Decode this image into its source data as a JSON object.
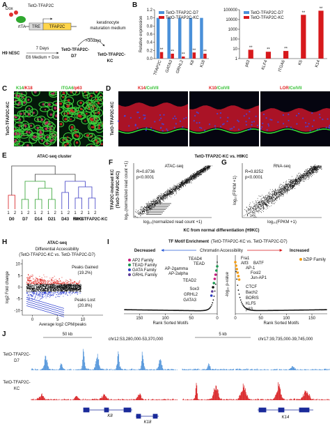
{
  "panel_letters": [
    "A",
    "B",
    "C",
    "D",
    "E",
    "F",
    "G",
    "H",
    "I",
    "J"
  ],
  "chart_data": [
    {
      "type": "bar",
      "ylabel": "Relative expression",
      "categories": [
        "TFAP2C",
        "GATA3",
        "GRHL2",
        "K8",
        "K18"
      ],
      "series": [
        {
          "name": "TetO-TFAP2C-D7",
          "color": "#4a90d9",
          "values": [
            1,
            1,
            1,
            1,
            1
          ]
        },
        {
          "name": "TetO-TFAP2C-KC",
          "color": "#d7191c",
          "values": [
            0.16,
            0.12,
            0.05,
            0.15,
            0.12
          ],
          "significance": [
            "**",
            "**",
            "**",
            "**",
            "**"
          ]
        }
      ],
      "ylim": [
        0,
        1.2
      ],
      "yticks": [
        {
          "value": 0,
          "label": "0.0"
        },
        0.2,
        0.4,
        0.6,
        0.8,
        {
          "value": 1,
          "label": "1.0"
        },
        1.2
      ],
      "legend": "top"
    },
    {
      "type": "bar",
      "log": true,
      "categories": [
        "p63",
        "KLF4",
        "ITGA6",
        "K5",
        "K14"
      ],
      "series": [
        {
          "name": "TetO-TFAP2C-D7",
          "color": "#4a90d9",
          "values": [
            1,
            1,
            1,
            1,
            1
          ]
        },
        {
          "name": "TetO-TFAP2C-KC",
          "color": "#d7191c",
          "values": [
            8,
            5,
            6,
            30000,
            80000
          ],
          "significance": [
            "**",
            "**",
            "**",
            "**",
            "**"
          ]
        }
      ],
      "ylim": [
        1,
        100000
      ],
      "yticks": [
        1,
        10,
        100,
        1000,
        10000,
        100000
      ],
      "legend": "top"
    }
  ],
  "panels": {
    "A": {
      "construct": "TetO-TFAP2C",
      "dox": "Dox",
      "rtta": "rtTA",
      "tre": "TRE",
      "gene": "TFAP2C",
      "start": "H9 hESC",
      "days": "7 Days",
      "medium1": "E6 Medium + Dox",
      "d7": [
        "TetO-TFAP2C-",
        "D7"
      ],
      "medium2": [
        "keratinocyte",
        "maturation medium"
      ],
      "time2": ">30days",
      "kc": [
        "TetO-TFAP2C-",
        "KC"
      ]
    },
    "C": {
      "side_label": "TetO-TFAP2C-KC",
      "stains": [
        [
          {
            "text": "K14",
            "color": "#2fbf2f"
          },
          {
            "text": "/K18",
            "color": "#e02020"
          }
        ],
        [
          {
            "text": "ITGA6",
            "color": "#2fbf2f"
          },
          {
            "text": "/p63",
            "color": "#e02020"
          }
        ]
      ]
    },
    "D": {
      "side_label": "TetO-TFAP2C-KC",
      "stains": [
        [
          {
            "text": "K14",
            "color": "#e02020"
          },
          {
            "text": "/ColVII",
            "color": "#2fbf2f"
          }
        ],
        [
          {
            "text": "K10",
            "color": "#e02020"
          },
          {
            "text": "/ColVII",
            "color": "#2fbf2f"
          }
        ],
        [
          {
            "text": "LOR",
            "color": "#e02020"
          },
          {
            "text": "/ColVII",
            "color": "#2fbf2f"
          }
        ]
      ]
    },
    "E": {
      "title": "ATAC-seq cluster",
      "groups": [
        {
          "name": "D0",
          "color": "#d7191c",
          "replicates": [
            "1",
            "2"
          ]
        },
        {
          "name": "D7",
          "color": "#2ca02c",
          "replicates": [
            "1",
            "2"
          ]
        },
        {
          "name": "D14",
          "color": "#2ca02c",
          "replicates": [
            "1",
            "2"
          ]
        },
        {
          "name": "D21",
          "color": "#2ca02c",
          "replicates": [
            "1",
            "2"
          ]
        },
        {
          "name": "D43",
          "color": "#3b3bc4",
          "replicates": [
            "1",
            "2"
          ]
        },
        {
          "name": "H9KC",
          "color": "#3b3bc4",
          "replicates": [
            "1",
            "2"
          ]
        },
        {
          "name": "TetO-TFAP2C-KC",
          "color": "#3b3bc4",
          "replicates": [
            "1",
            "2"
          ]
        }
      ]
    },
    "F": {
      "heading": "TetO-TFAP2C-KC vs. H9KC",
      "title": "ATAC-seq",
      "r": "R=0.8736",
      "p": "p<0.0001",
      "ylabel": [
        "TFAP2C-induced KC",
        "(TetO-TFAP2C-KC)"
      ],
      "axis_label": "log₁₀(normalized read count +1)",
      "xlabel": "KC from normal differentiation (H9KC)"
    },
    "G": {
      "title": "RNA-seq",
      "r": "R=0.8252",
      "p": "p<0.0001",
      "axis_label": "log₁₀(FPKM +1)"
    },
    "H": {
      "title": "ATAC-seq",
      "subtitle": "Differential Accessibility",
      "comparison": "(TetO-TFAP2C-KC vs. TetO-TFAP2C-D7)",
      "gained": [
        "Peaks Gained",
        "(19.2%)"
      ],
      "lost": [
        "Peaks Lost",
        "(20.8%)"
      ],
      "ylabel": "log2 Fold change",
      "xlabel": "Average log2 CPM/peaks",
      "ylim": [
        -12,
        12
      ],
      "yticks": [
        -10,
        -5,
        0,
        5,
        10
      ],
      "xlim": [
        -2,
        14
      ],
      "xticks": [
        0,
        5,
        10
      ]
    },
    "I": {
      "title": "TF Motif Enrichment",
      "comparison": "(TetO-TFAP2C-KC vs. TetO-TFAP2C-D7)",
      "decreased": "Decreased",
      "middle": "Chromatin Accessibility",
      "increased": "Increased",
      "ylabel": "-log₁₀ p-value",
      "xlabel": "Rank Sorted Motifs",
      "families": [
        {
          "name": "AP2 Family",
          "color": "#c51b7d"
        },
        {
          "name": "TEAD Family",
          "color": "#1a9850"
        },
        {
          "name": "GATA Family",
          "color": "#2c3ec4"
        },
        {
          "name": "GRHL Family",
          "color": "#5e3c99"
        }
      ],
      "right_family": {
        "name": "bZIP Family",
        "color": "#f39c12"
      },
      "left_motifs": [
        "TEAD4",
        "TEAD",
        "AP-2gamma",
        "AP-2alpha",
        "TEAD2",
        "Sox3",
        "GRHL2",
        "GATA3"
      ],
      "right_motifs": [
        "Fra1",
        "Atf3",
        "BATF",
        "AP-1",
        "Fosl2",
        "Jun-AP1",
        "CTCF",
        "Bach2",
        "BORIS",
        "KLF5",
        "p63"
      ],
      "left_xlim": [
        180,
        0
      ],
      "left_xticks": [
        150,
        100,
        50,
        0
      ],
      "right_xlim": [
        0,
        180
      ],
      "right_xticks": [
        0,
        50,
        100,
        150
      ]
    },
    "J": {
      "scale_left": "50 kb",
      "region_left": "chr12:53,280,000-53,370,000",
      "scale_right": "5 kb",
      "region_right": "chr17:39,735,000-39,745,000",
      "track_d7": [
        "TetO-TFAP2C-",
        "D7"
      ],
      "track_kc": [
        "TetO-TFAP2C-",
        "KC"
      ],
      "genes": [
        "K8",
        "K18",
        "K14"
      ]
    }
  }
}
